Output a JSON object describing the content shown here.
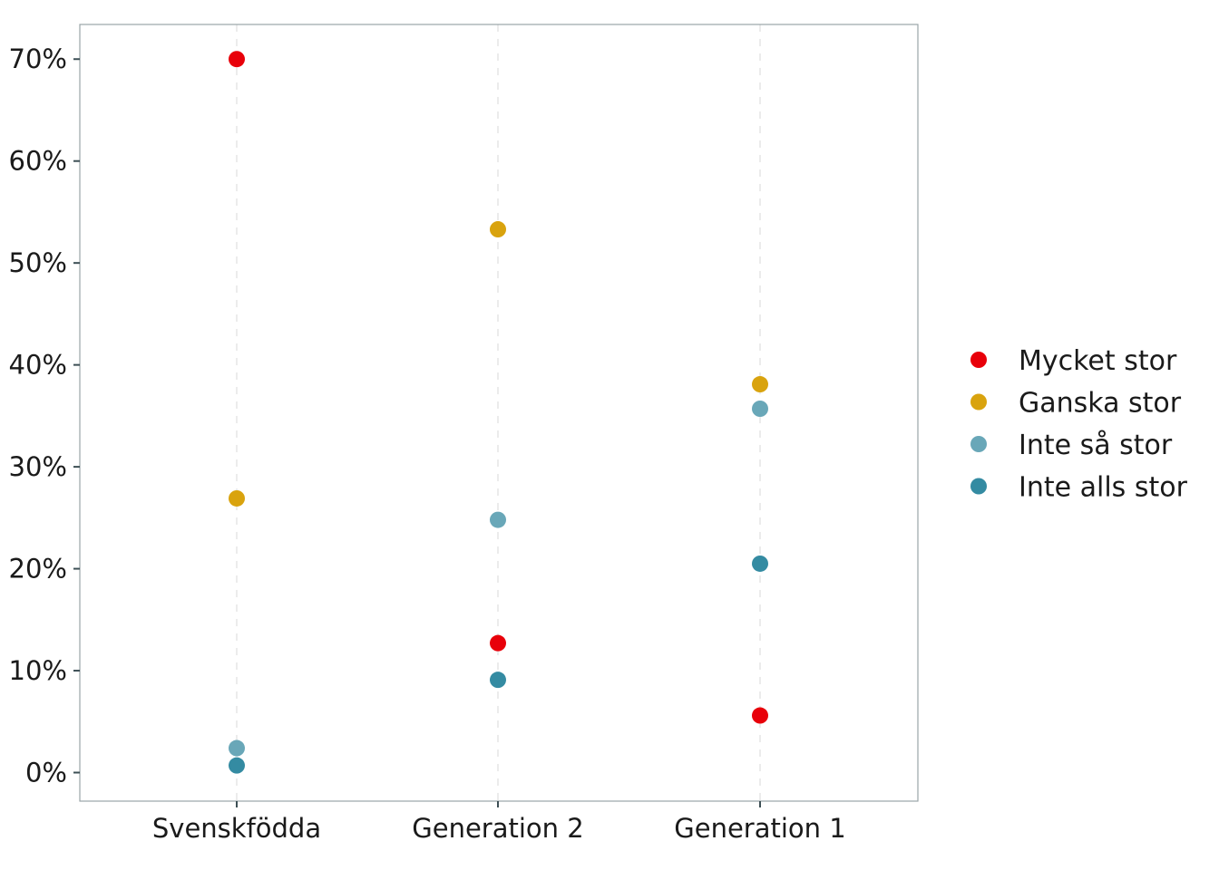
{
  "chart_data": {
    "type": "scatter",
    "categories": [
      "Svenskfödda",
      "Generation 2",
      "Generation 1"
    ],
    "ylim": [
      -2.8,
      73.4
    ],
    "yticks": [
      0,
      10,
      20,
      30,
      40,
      50,
      60,
      70
    ],
    "ytick_labels": [
      "0%",
      "10%",
      "20%",
      "30%",
      "40%",
      "50%",
      "60%",
      "70%"
    ],
    "grid": "vertical-dashed",
    "legend_position": "right",
    "series": [
      {
        "name": "Mycket stor",
        "color": "#E8000A",
        "values": [
          70.0,
          12.7,
          5.6
        ]
      },
      {
        "name": "Ganska stor",
        "color": "#D9A30E",
        "values": [
          26.9,
          53.3,
          38.1
        ]
      },
      {
        "name": "Inte så stor",
        "color": "#69A7B8",
        "values": [
          2.4,
          24.8,
          35.7
        ]
      },
      {
        "name": "Inte alls stor",
        "color": "#348BA2",
        "values": [
          0.7,
          9.1,
          20.5
        ]
      }
    ]
  }
}
